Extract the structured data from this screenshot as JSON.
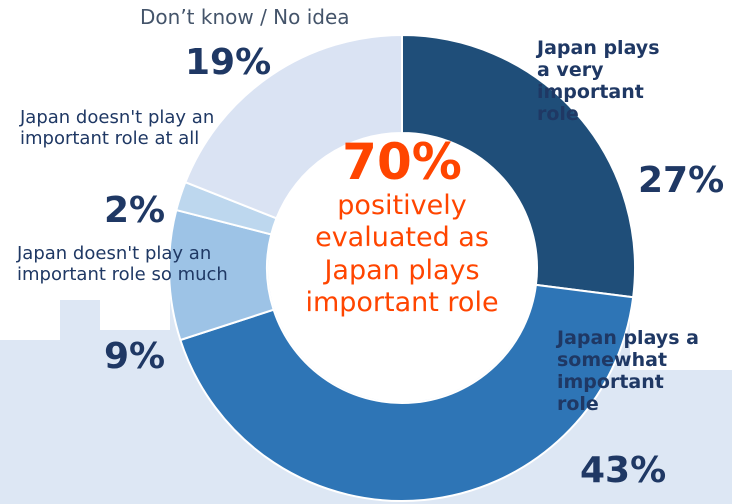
{
  "chart_data": {
    "type": "donut",
    "categories": [
      "Japan plays a very important role",
      "Japan plays a somewhat important role",
      "Japan doesn't play an important role so much",
      "Japan doesn't play an important role at all",
      "Don’t know / No idea"
    ],
    "values": [
      27,
      43,
      9,
      2,
      19
    ],
    "value_labels": [
      "27%",
      "43%",
      "9%",
      "2%",
      "19%"
    ],
    "colors": [
      "#1f4e79",
      "#2e75b6",
      "#9dc3e6",
      "#bdd7ee",
      "#dae3f3"
    ],
    "center_value": "70%",
    "center_text": "positively evaluated as Japan plays important role"
  }
}
